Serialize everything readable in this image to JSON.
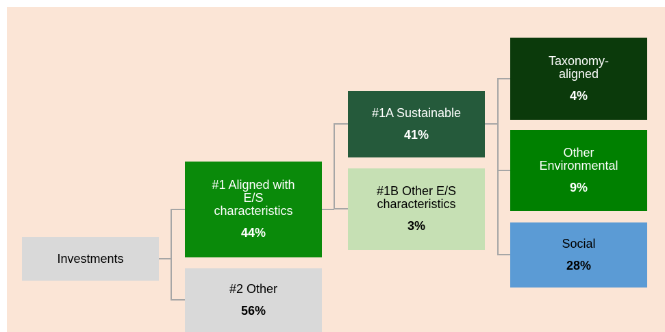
{
  "nodes": [
    {
      "label": [
        "Investments"
      ]
    },
    {
      "label": [
        "#1 Aligned with",
        "E/S",
        "characteristics"
      ],
      "value": "44%"
    },
    {
      "label": [
        "#2 Other"
      ],
      "value": "56%"
    },
    {
      "label": [
        "#1A Sustainable"
      ],
      "value": "41%"
    },
    {
      "label": [
        "#1B Other E/S",
        "characteristics"
      ],
      "value": "3%"
    },
    {
      "label": [
        "Taxonomy-",
        "aligned"
      ],
      "value": "4%"
    },
    {
      "label": [
        "Other",
        "Environmental"
      ],
      "value": "9%"
    },
    {
      "label": [
        "Social"
      ],
      "value": "28%"
    }
  ]
}
